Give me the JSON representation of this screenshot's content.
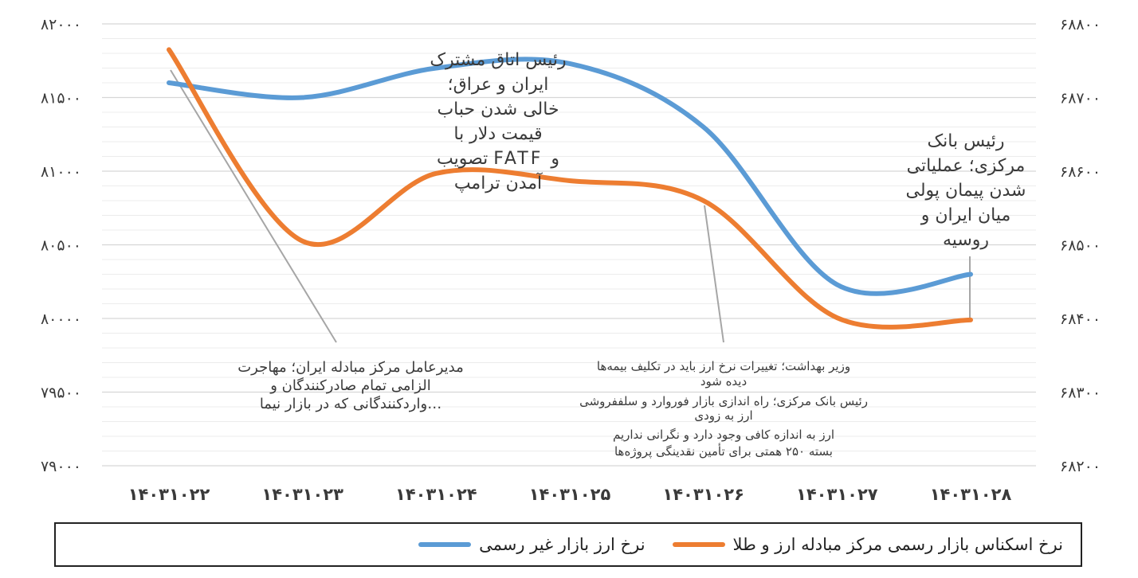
{
  "chart_data": {
    "type": "line",
    "categories": [
      "۱۴۰۳۱۰۲۲",
      "۱۴۰۳۱۰۲۳",
      "۱۴۰۳۱۰۲۴",
      "۱۴۰۳۱۰۲۵",
      "۱۴۰۳۱۰۲۶",
      "۱۴۰۳۱۰۲۷",
      "۱۴۰۳۱۰۲۸"
    ],
    "left_axis": {
      "ylim": [
        79000,
        82000
      ],
      "ticks": [
        79000,
        79500,
        80000,
        80500,
        81000,
        81500,
        82000
      ],
      "tick_labels": [
        "۷۹۰۰۰",
        "۷۹۵۰۰",
        "۸۰۰۰۰",
        "۸۰۵۰۰",
        "۸۱۰۰۰",
        "۸۱۵۰۰",
        "۸۲۰۰۰"
      ]
    },
    "right_axis": {
      "ylim": [
        68200,
        68800
      ],
      "ticks": [
        68200,
        68300,
        68400,
        68500,
        68600,
        68700,
        68800
      ],
      "tick_labels": [
        "۶۸۲۰۰",
        "۶۸۳۰۰",
        "۶۸۴۰۰",
        "۶۸۵۰۰",
        "۶۸۶۰۰",
        "۶۸۷۰۰",
        "۶۸۸۰۰"
      ]
    },
    "series": [
      {
        "name": "نرخ ارز بازار غیر رسمی",
        "axis": "left",
        "color": "#5b9bd5",
        "values": [
          81600,
          81500,
          81700,
          81730,
          81300,
          80230,
          80300
        ]
      },
      {
        "name": "نرخ اسکناس بازار رسمی مرکز مبادله ارز و طلا",
        "axis": "right",
        "color": "#ed7d31",
        "values": [
          68765,
          68505,
          68597,
          68587,
          68560,
          68401,
          68398
        ]
      }
    ],
    "annotations": {
      "top_middle": [
        "رئیس اتاق مشترک",
        "ایران و عراق؛",
        "خالی شدن حباب",
        "قیمت دلار با",
        "تصویب FATF و",
        "آمدن ترامپ"
      ],
      "top_right": [
        "رئیس بانک",
        "مرکزی؛ عملیاتی",
        "شدن پیمان پولی",
        "میان ایران و",
        "روسیه"
      ],
      "bottom_left": [
        "مدیرعامل مرکز مبادله ایران؛ مهاجرت",
        "الزامی تمام صادرکنندگان و",
        "واردکنندگانی که در بازار نیما…"
      ],
      "bottom_right": [
        "وزیر بهداشت؛ تغییرات نرخ ارز باید در تکلیف بیمه‌ها",
        "دیده شود",
        "رئیس بانک مرکزی؛ راه اندازی بازار فوروارد و سلففروشی",
        "ارز به زودی",
        "ارز به اندازه کافی وجود دارد و نگرانی نداریم",
        "بسته ۲۵۰ همتی برای تأمین نقدینگی پروژه‌ها"
      ]
    },
    "grid": true,
    "legend_position": "bottom"
  },
  "legend": {
    "item_official": "نرخ اسکناس بازار رسمی مرکز مبادله ارز و طلا",
    "item_unofficial": "نرخ ارز بازار غیر رسمی",
    "color_official": "#ed7d31",
    "color_unofficial": "#5b9bd5"
  }
}
